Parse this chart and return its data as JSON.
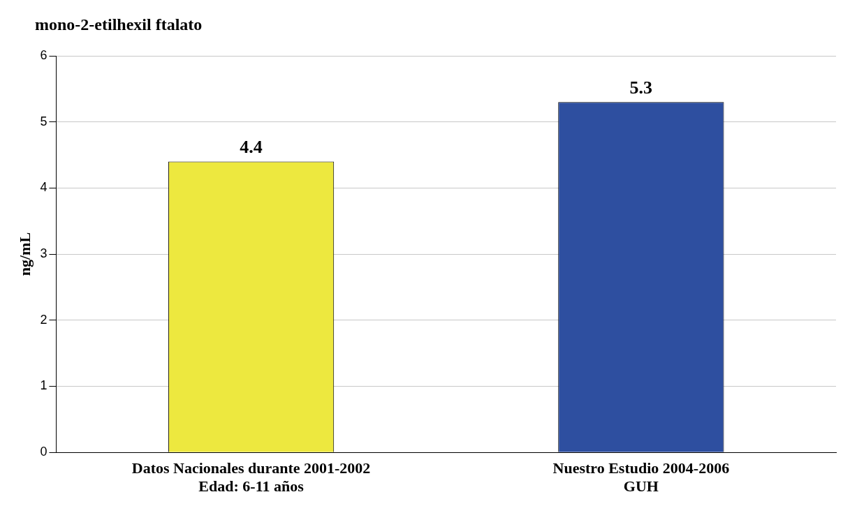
{
  "chart_data": {
    "type": "bar",
    "title": "mono-2-etilhexil ftalato",
    "ylabel": "ng/mL",
    "categories": [
      "Datos Nacionales durante 2001-2002\nEdad: 6-11 años",
      "Nuestro Estudio 2004-2006\nGUH"
    ],
    "values": [
      4.4,
      5.3
    ],
    "colors": [
      "#ede83f",
      "#2e4fa0"
    ],
    "ylim": [
      0,
      6
    ],
    "yticks": [
      0,
      1,
      2,
      3,
      4,
      5,
      6
    ],
    "grid": "y",
    "data_labels": true,
    "legend": false
  }
}
